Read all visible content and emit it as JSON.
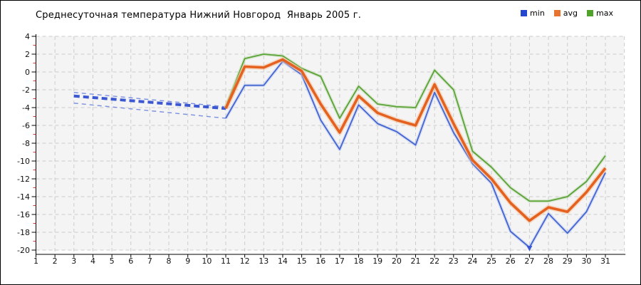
{
  "title": "Среднесуточная температура Нижний Новгород  Январь 2005 г.",
  "legend": {
    "items": [
      {
        "label": "min",
        "color": "#2547d0"
      },
      {
        "label": "avg",
        "color": "#e8732e"
      },
      {
        "label": "max",
        "color": "#4fa32a"
      }
    ]
  },
  "chart_data": {
    "type": "line",
    "title": "Среднесуточная температура Нижний Новгород  Январь 2005 г.",
    "xlabel": "",
    "ylabel": "",
    "xlim": [
      1,
      31
    ],
    "ylim": [
      -20,
      4
    ],
    "grid": true,
    "legend_position": "top-right",
    "x_ticks": [
      1,
      2,
      3,
      4,
      5,
      6,
      7,
      8,
      9,
      10,
      11,
      12,
      13,
      14,
      15,
      16,
      17,
      18,
      19,
      20,
      21,
      22,
      23,
      24,
      25,
      26,
      27,
      28,
      29,
      30,
      31
    ],
    "y_ticks": [
      4,
      2,
      0,
      -2,
      -4,
      -6,
      -8,
      -10,
      -12,
      -14,
      -16,
      -18,
      -20
    ],
    "y_minor_ticks": [
      3,
      1,
      -1,
      -3,
      -5,
      -7,
      -9,
      -11,
      -13,
      -15,
      -17,
      -19
    ],
    "x": [
      11,
      12,
      13,
      14,
      15,
      16,
      17,
      18,
      19,
      20,
      21,
      22,
      23,
      24,
      25,
      26,
      27,
      28,
      29,
      30,
      31
    ],
    "series": [
      {
        "name": "min",
        "color": "#4465d0",
        "values": [
          -5.2,
          -1.5,
          -1.5,
          1.2,
          -0.3,
          -5.4,
          -8.7,
          -3.7,
          -5.8,
          -6.7,
          -8.2,
          -2.3,
          -6.8,
          -10.3,
          -12.5,
          -17.9,
          -19.7,
          -15.9,
          -18.1,
          -15.7,
          -11.3
        ]
      },
      {
        "name": "avg",
        "color": "#e4611f",
        "values": [
          -4.1,
          0.6,
          0.5,
          1.4,
          0.1,
          -3.6,
          -6.8,
          -2.7,
          -4.6,
          -5.4,
          -6.0,
          -1.4,
          -5.8,
          -9.9,
          -12.0,
          -14.7,
          -16.7,
          -15.2,
          -15.7,
          -13.5,
          -10.8
        ]
      },
      {
        "name": "max",
        "color": "#5ba338",
        "values": [
          -3.9,
          1.5,
          2.0,
          1.8,
          0.4,
          -0.5,
          -5.2,
          -1.6,
          -3.6,
          -3.9,
          -4.0,
          0.2,
          -2.0,
          -8.9,
          -10.7,
          -13.0,
          -14.5,
          -14.5,
          -14.0,
          -12.3,
          -9.4
        ]
      }
    ],
    "forecast_dashed_segment": {
      "note": "thick blue dashed mid line with thin dashed upper/lower bounds, days 3 to 11",
      "x": [
        3,
        11
      ],
      "mid": [
        -2.7,
        -4.1
      ],
      "upper": [
        -2.3,
        -3.9
      ],
      "lower": [
        -3.5,
        -5.2
      ],
      "mid_color": "#3b57d1",
      "thin_color": "#7b8fe0"
    },
    "min_marker": {
      "day": 27,
      "symbol": "down-arrow",
      "color": "#3b57d1"
    },
    "colors": {
      "plot_background": "#f4f4f4",
      "gridline": "#cccccc",
      "axis": "#000000",
      "minor_tick": "#cc3333",
      "halo_min": "#bcc9f2",
      "halo_avg": "#f6c29e",
      "halo_max": "#bfdcae"
    }
  }
}
